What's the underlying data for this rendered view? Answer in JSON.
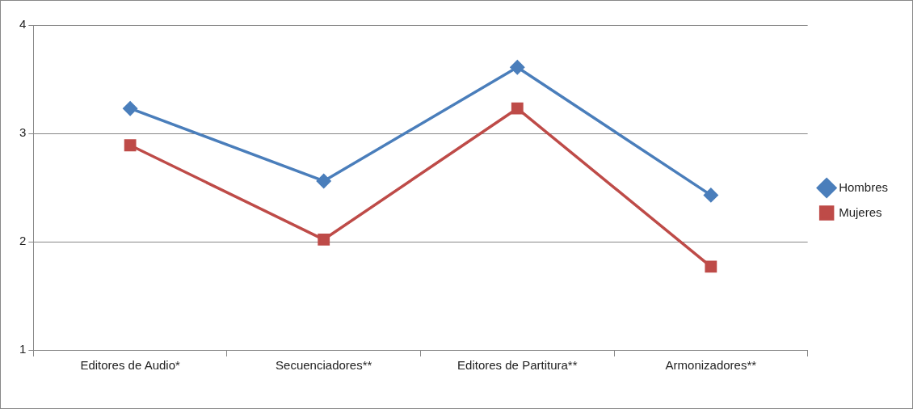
{
  "chart_data": {
    "type": "line",
    "categories": [
      "Editores de Audio*",
      "Secuenciadores**",
      "Editores de Partitura**",
      "Armonizadores**"
    ],
    "series": [
      {
        "name": "Hombres",
        "color": "#4a7ebb",
        "marker": "diamond",
        "values": [
          3.23,
          2.56,
          3.61,
          2.43
        ]
      },
      {
        "name": "Mujeres",
        "color": "#be4b48",
        "marker": "square",
        "values": [
          2.89,
          2.02,
          3.23,
          1.77
        ]
      }
    ],
    "ylim": [
      1,
      4
    ],
    "yticks": [
      1,
      2,
      3,
      4
    ],
    "grid": "y",
    "legend": "right",
    "line_style": "solid"
  }
}
